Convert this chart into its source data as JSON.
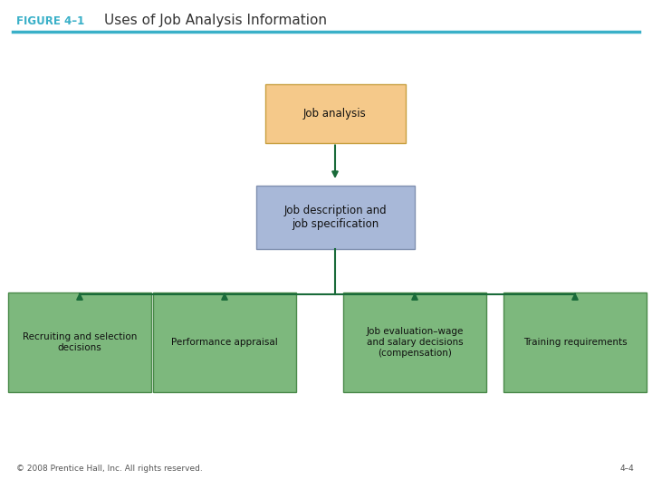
{
  "title_label": "FIGURE 4–1",
  "title_text": "Uses of Job Analysis Information",
  "title_label_color": "#3ab0c8",
  "title_text_color": "#333333",
  "footer_left": "© 2008 Prentice Hall, Inc. All rights reserved.",
  "footer_right": "4–4",
  "box1_text": "Job analysis",
  "box1_color": "#f5c98a",
  "box1_border": "#c8a040",
  "box2_text": "Job description and\njob specification",
  "box2_color": "#a8b8d8",
  "box2_border": "#8090b0",
  "bottom_boxes": [
    {
      "text": "Recruiting and selection\ndecisions",
      "color": "#7db87d",
      "border": "#4a8a4a"
    },
    {
      "text": "Performance appraisal",
      "color": "#7db87d",
      "border": "#4a8a4a"
    },
    {
      "text": "Job evaluation–wage\nand salary decisions\n(compensation)",
      "color": "#7db87d",
      "border": "#4a8a4a"
    },
    {
      "text": "Training requirements",
      "color": "#7db87d",
      "border": "#4a8a4a"
    }
  ],
  "arrow_color": "#1a6b3a",
  "header_line_color": "#3ab0c8",
  "bg_color": "#ffffff"
}
